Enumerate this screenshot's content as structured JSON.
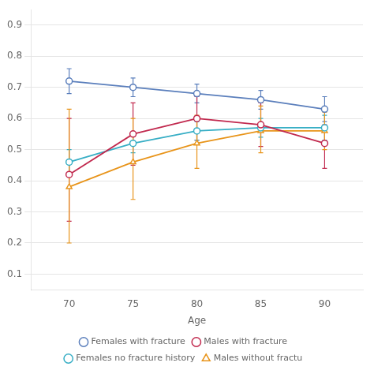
{
  "chart_data": {
    "type": "line",
    "x": [
      70,
      75,
      80,
      85,
      90
    ],
    "series": [
      {
        "name": "Females with fracture",
        "color": "#5b7fbc",
        "marker": "circle",
        "values": [
          0.72,
          0.7,
          0.68,
          0.66,
          0.63
        ],
        "yerr_lower": [
          0.04,
          0.03,
          0.03,
          0.03,
          0.04
        ],
        "yerr_upper": [
          0.04,
          0.03,
          0.03,
          0.03,
          0.04
        ]
      },
      {
        "name": "Males with fracture",
        "color": "#c1294e",
        "marker": "square",
        "values": [
          0.42,
          0.55,
          0.6,
          0.58,
          0.52
        ],
        "yerr_lower": [
          0.15,
          0.1,
          0.07,
          0.07,
          0.08
        ],
        "yerr_upper": [
          0.18,
          0.1,
          0.07,
          0.07,
          0.06
        ]
      },
      {
        "name": "Females no fracture history",
        "color": "#37aec5",
        "marker": "circle",
        "values": [
          0.46,
          0.52,
          0.56,
          0.57,
          0.57
        ],
        "yerr_lower": [
          0.04,
          0.03,
          0.03,
          0.03,
          0.04
        ],
        "yerr_upper": [
          0.04,
          0.03,
          0.03,
          0.03,
          0.04
        ]
      },
      {
        "name": "Males without fractu",
        "color": "#e8941a",
        "marker": "triangle",
        "values": [
          0.38,
          0.46,
          0.52,
          0.56,
          0.56
        ],
        "yerr_lower": [
          0.18,
          0.12,
          0.08,
          0.07,
          0.06
        ],
        "yerr_upper": [
          0.25,
          0.14,
          0.09,
          0.08,
          0.06
        ]
      }
    ],
    "xlabel": "Age",
    "xlim": [
      67,
      93
    ],
    "xticks": [
      70,
      75,
      80,
      85,
      90
    ],
    "ylim": [
      0.05,
      0.95
    ],
    "yticks": [
      0.1,
      0.2,
      0.3,
      0.4,
      0.5,
      0.6,
      0.7,
      0.8,
      0.9
    ],
    "grid": "y",
    "legend": "bottom"
  }
}
